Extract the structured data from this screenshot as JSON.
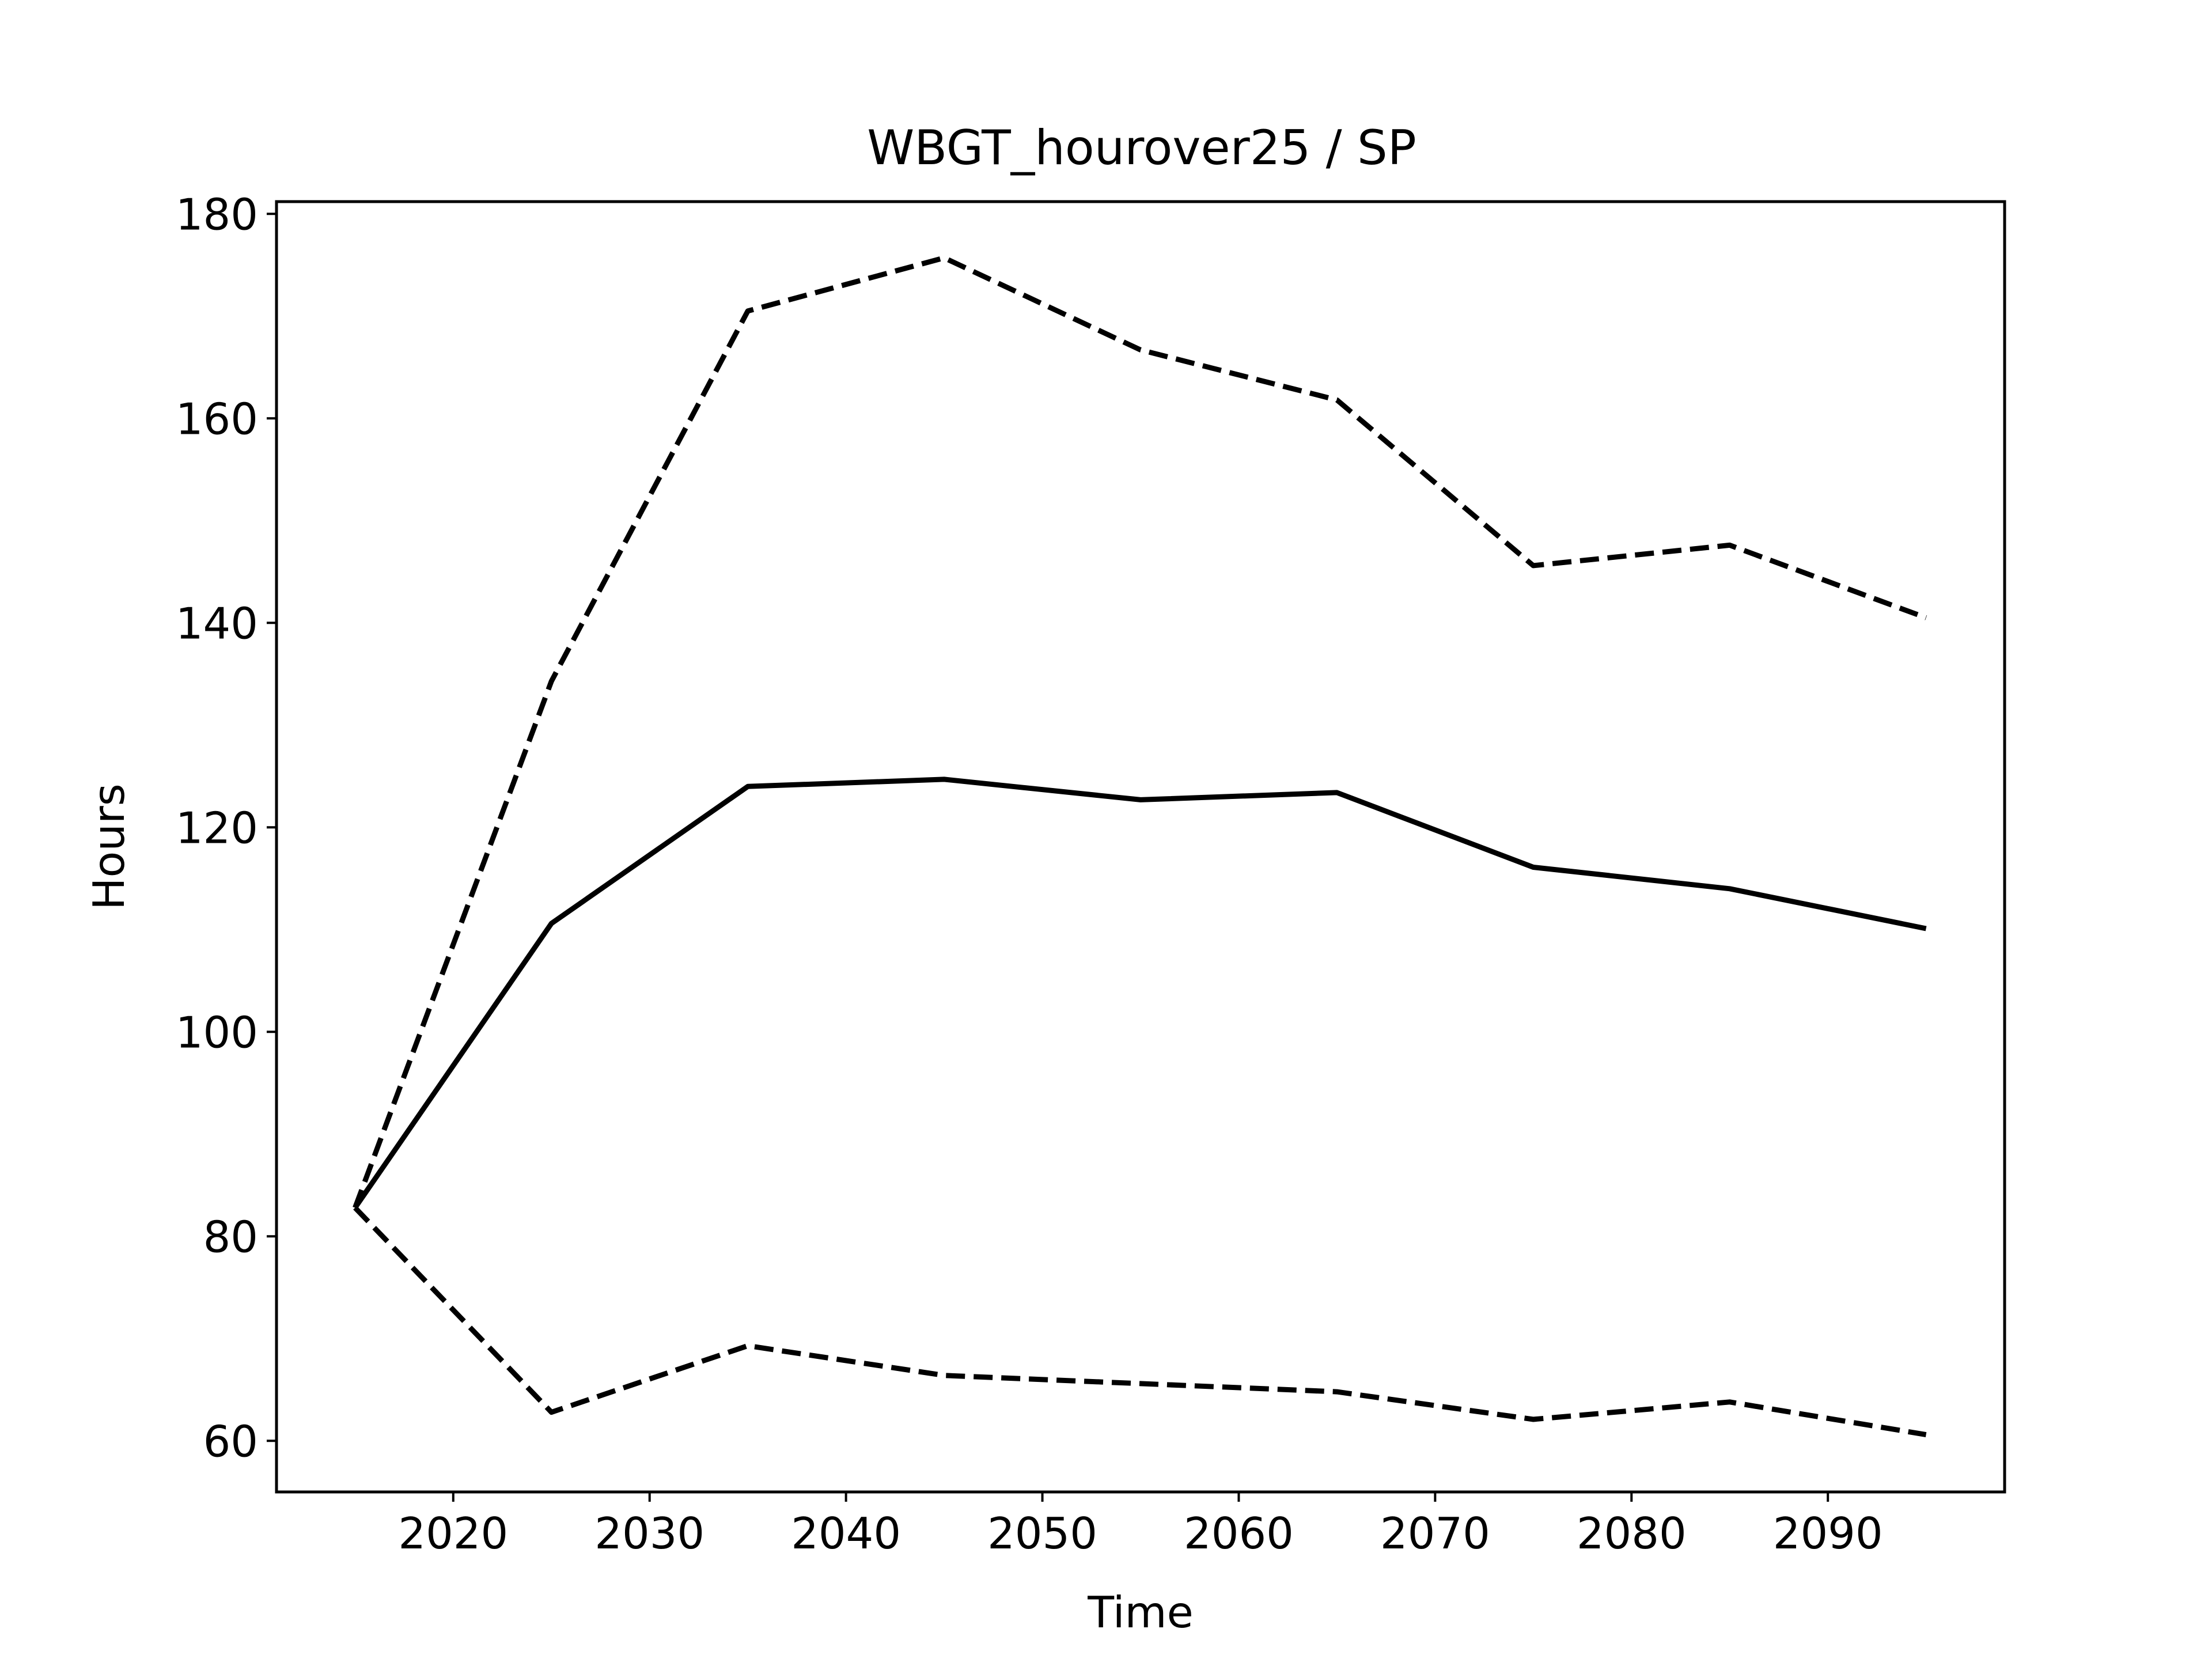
{
  "chart_data": {
    "type": "line",
    "title": "WBGT_hourover25 / SP",
    "xlabel": "Time",
    "ylabel": "Hours",
    "x": [
      2015,
      2025,
      2035,
      2045,
      2055,
      2065,
      2075,
      2085,
      2095
    ],
    "xlim": [
      2011,
      2099
    ],
    "ylim": [
      55,
      181.2
    ],
    "xticks": [
      2020,
      2030,
      2040,
      2050,
      2060,
      2070,
      2080,
      2090
    ],
    "yticks": [
      60,
      80,
      100,
      120,
      140,
      160,
      180
    ],
    "grid": false,
    "legend": "none",
    "series": [
      {
        "style": "solid",
        "color": "#000000",
        "values": [
          82.8,
          110.6,
          124.0,
          124.7,
          122.7,
          123.4,
          116.1,
          114.0,
          110.1
        ]
      },
      {
        "style": "dashed",
        "color": "#000000",
        "values": [
          82.8,
          134.3,
          170.5,
          175.7,
          166.7,
          161.8,
          145.6,
          147.6,
          140.5
        ]
      },
      {
        "style": "dashed",
        "color": "#000000",
        "values": [
          82.8,
          62.8,
          69.3,
          66.4,
          65.6,
          64.8,
          62.1,
          63.8,
          60.6
        ]
      }
    ]
  }
}
